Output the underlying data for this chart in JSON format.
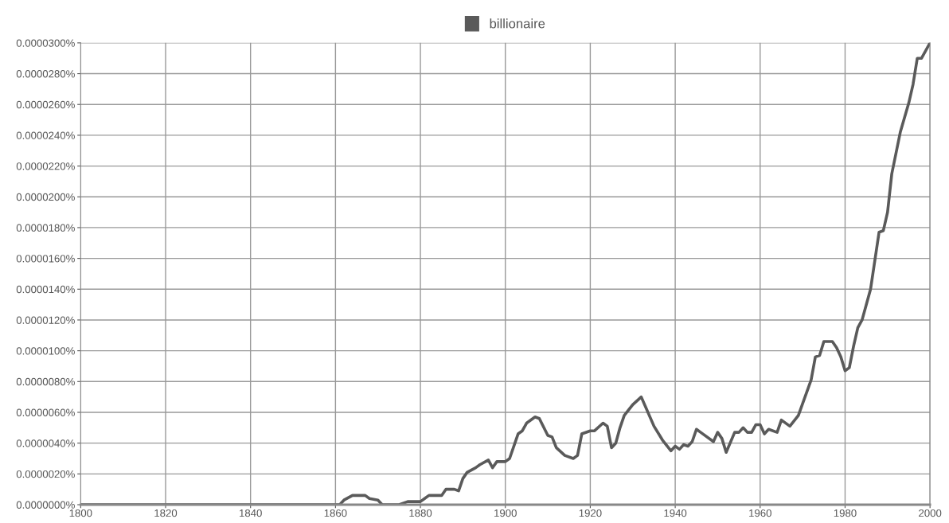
{
  "chart_data": {
    "type": "line",
    "xlim": [
      1800,
      2000
    ],
    "xticks": [
      1800,
      1820,
      1840,
      1860,
      1880,
      1900,
      1920,
      1940,
      1960,
      1980,
      2000
    ],
    "ylim": [
      0,
      3e-05
    ],
    "yticks": [
      {
        "value": 0,
        "label": "0.0000000%"
      },
      {
        "value": 2e-06,
        "label": "0.0000020%"
      },
      {
        "value": 4e-06,
        "label": "0.0000040%"
      },
      {
        "value": 6e-06,
        "label": "0.0000060%"
      },
      {
        "value": 8e-06,
        "label": "0.0000080%"
      },
      {
        "value": 1e-05,
        "label": "0.0000100%"
      },
      {
        "value": 1.2e-05,
        "label": "0.0000120%"
      },
      {
        "value": 1.4e-05,
        "label": "0.0000140%"
      },
      {
        "value": 1.6e-05,
        "label": "0.0000160%"
      },
      {
        "value": 1.8e-05,
        "label": "0.0000180%"
      },
      {
        "value": 2e-05,
        "label": "0.0000200%"
      },
      {
        "value": 2.2e-05,
        "label": "0.0000220%"
      },
      {
        "value": 2.4e-05,
        "label": "0.0000240%"
      },
      {
        "value": 2.6e-05,
        "label": "0.0000260%"
      },
      {
        "value": 2.8e-05,
        "label": "0.0000280%"
      },
      {
        "value": 3e-05,
        "label": "0.0000300%"
      }
    ],
    "grid": true,
    "legend": "top",
    "marker": "none",
    "line_style": "solid",
    "series": [
      {
        "name": "billionaire",
        "color": "#5a5a5a",
        "x": [
          1800,
          1861,
          1862,
          1864,
          1867,
          1868,
          1870,
          1871,
          1875,
          1877,
          1880,
          1881,
          1882,
          1885,
          1886,
          1888,
          1889,
          1890,
          1891,
          1893,
          1894,
          1896,
          1897,
          1898,
          1900,
          1901,
          1903,
          1904,
          1905,
          1907,
          1908,
          1910,
          1911,
          1912,
          1914,
          1916,
          1917,
          1918,
          1920,
          1921,
          1923,
          1924,
          1925,
          1926,
          1927,
          1928,
          1930,
          1932,
          1935,
          1937,
          1939,
          1940,
          1941,
          1942,
          1943,
          1944,
          1945,
          1946,
          1949,
          1950,
          1951,
          1952,
          1954,
          1955,
          1956,
          1957,
          1958,
          1959,
          1960,
          1961,
          1962,
          1964,
          1965,
          1967,
          1969,
          1972,
          1973,
          1974,
          1975,
          1977,
          1978,
          1979,
          1980,
          1981,
          1982,
          1983,
          1984,
          1986,
          1988,
          1989,
          1990,
          1991,
          1993,
          1995,
          1996,
          1997,
          1998,
          2000
        ],
        "values": [
          0,
          0,
          3e-07,
          6e-07,
          6e-07,
          4e-07,
          3e-07,
          0,
          0,
          2e-07,
          2e-07,
          4e-07,
          6e-07,
          6e-07,
          1e-06,
          1e-06,
          9e-07,
          1.7e-06,
          2.1e-06,
          2.4e-06,
          2.6e-06,
          2.9e-06,
          2.4e-06,
          2.8e-06,
          2.8e-06,
          3e-06,
          4.6e-06,
          4.8e-06,
          5.3e-06,
          5.7e-06,
          5.6e-06,
          4.5e-06,
          4.4e-06,
          3.7e-06,
          3.2e-06,
          3e-06,
          3.2e-06,
          4.6e-06,
          4.8e-06,
          4.8e-06,
          5.3e-06,
          5.1e-06,
          3.7e-06,
          4e-06,
          5e-06,
          5.8e-06,
          6.5e-06,
          7e-06,
          5.1e-06,
          4.2e-06,
          3.5e-06,
          3.8e-06,
          3.6e-06,
          3.9e-06,
          3.8e-06,
          4.1e-06,
          4.9e-06,
          4.7e-06,
          4.1e-06,
          4.7e-06,
          4.3e-06,
          3.4e-06,
          4.7e-06,
          4.7e-06,
          5e-06,
          4.7e-06,
          4.7e-06,
          5.2e-06,
          5.2e-06,
          4.6e-06,
          4.9e-06,
          4.7e-06,
          5.5e-06,
          5.1e-06,
          5.8e-06,
          8.1e-06,
          9.6e-06,
          9.7e-06,
          1.06e-05,
          1.06e-05,
          1.02e-05,
          9.6e-06,
          8.7e-06,
          8.9e-06,
          1.03e-05,
          1.15e-05,
          1.2e-05,
          1.4e-05,
          1.77e-05,
          1.78e-05,
          1.9e-05,
          2.15e-05,
          2.42e-05,
          2.61e-05,
          2.73e-05,
          2.9e-05,
          2.9e-05,
          3e-05
        ]
      }
    ]
  }
}
